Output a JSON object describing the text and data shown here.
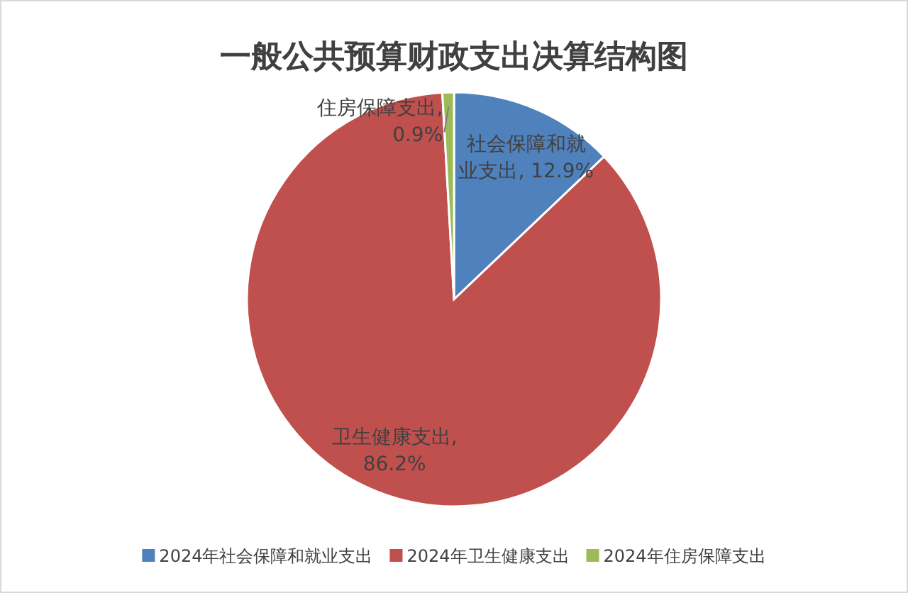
{
  "chart_data": {
    "type": "pie",
    "title": "一般公共预算财政支出决算结构图",
    "categories": [
      "2024年社会保障和就业支出",
      "2024年卫生健康支出",
      "2024年住房保障支出"
    ],
    "values": [
      12.9,
      86.2,
      0.9
    ],
    "colors": [
      "#4f81bd",
      "#c0504d",
      "#9bbb59"
    ],
    "value_labels": [
      "社会保障和就业支出, 12.9%",
      "卫生健康支出, 86.2%",
      "住房保障支出, 0.9%"
    ],
    "legend": "bottom"
  }
}
